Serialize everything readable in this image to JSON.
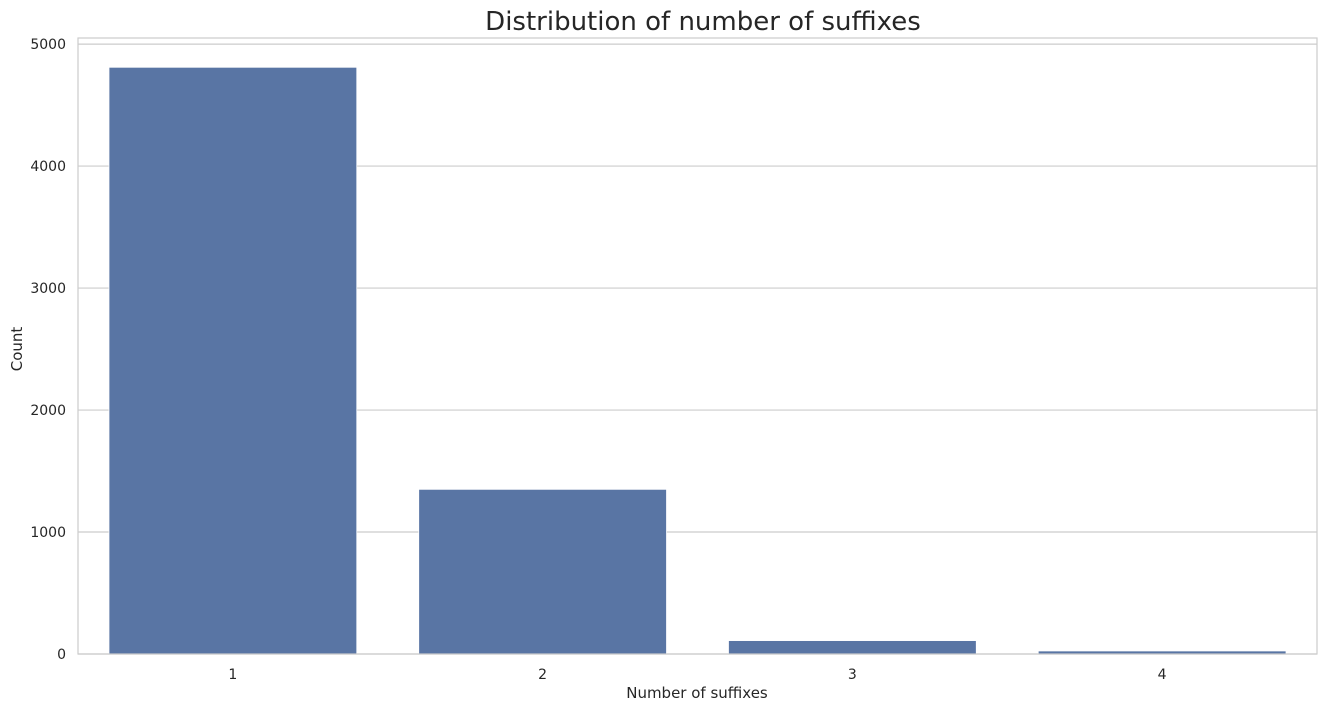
{
  "chart_data": {
    "type": "bar",
    "title": "Distribution of number of suffixes",
    "xlabel": "Number of suffixes",
    "ylabel": "Count",
    "categories": [
      "1",
      "2",
      "3",
      "4"
    ],
    "values": [
      4810,
      1350,
      110,
      25
    ],
    "ylim": [
      0,
      5050
    ],
    "yticks": [
      0,
      1000,
      2000,
      3000,
      4000,
      5000
    ],
    "grid": "y",
    "bar_color": "#5975a4",
    "grid_color": "#cccccc",
    "frame_color": "#cccccc"
  }
}
